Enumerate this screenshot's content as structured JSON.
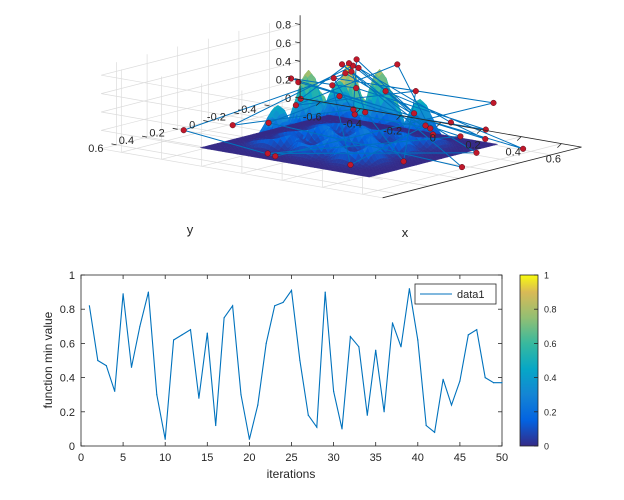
{
  "chart_data": [
    {
      "type": "surface3d",
      "xlabel": "x",
      "ylabel": "y",
      "zlabel": "",
      "x_ticks": [
        "-0.6",
        "-0.4",
        "-0.2",
        "0",
        "0.2",
        "0.4",
        "0.6"
      ],
      "y_ticks": [
        "-0.4",
        "-0.2",
        "0",
        "0.2",
        "0.4",
        "0.6"
      ],
      "z_ticks": [
        "0",
        "0.2",
        "0.4",
        "0.6",
        "0.8"
      ],
      "xlim": [
        -0.7,
        0.7
      ],
      "ylim": [
        -0.6,
        0.7
      ],
      "zlim": [
        0,
        0.9
      ],
      "grid": true,
      "surface": {
        "colormap": "parula",
        "peaks": [
          {
            "x": 0.0,
            "y": 0.0,
            "height": 0.9,
            "width": 0.05
          },
          {
            "x": 0.0,
            "y": -0.2,
            "height": 0.75,
            "width": 0.05
          },
          {
            "x": -0.2,
            "y": 0.0,
            "height": 0.75,
            "width": 0.05
          },
          {
            "x": 0.2,
            "y": 0.2,
            "height": 0.75,
            "width": 0.05
          },
          {
            "x": 0.0,
            "y": 0.2,
            "height": 0.7,
            "width": 0.05
          },
          {
            "x": 0.2,
            "y": 0.0,
            "height": 0.7,
            "width": 0.05
          },
          {
            "x": -0.2,
            "y": -0.2,
            "height": 0.55,
            "width": 0.05
          },
          {
            "x": 0.2,
            "y": -0.2,
            "height": 0.5,
            "width": 0.05
          },
          {
            "x": -0.2,
            "y": 0.2,
            "height": 0.45,
            "width": 0.05
          }
        ]
      },
      "path_color": "#0072BD",
      "marker_color": "#C0182A",
      "path_points": [
        [
          0.05,
          0.05,
          0.85
        ],
        [
          -0.48,
          0.45,
          0.18
        ],
        [
          -0.1,
          0.35,
          0.0
        ],
        [
          0.3,
          -0.55,
          0.35
        ],
        [
          0.0,
          0.1,
          0.78
        ],
        [
          -0.2,
          -0.3,
          0.14
        ],
        [
          0.1,
          -0.4,
          0.06
        ],
        [
          0.0,
          -0.05,
          0.92
        ],
        [
          0.25,
          0.3,
          0.62
        ],
        [
          -0.35,
          0.3,
          0.22
        ],
        [
          0.02,
          0.0,
          0.88
        ],
        [
          0.4,
          0.1,
          0.55
        ],
        [
          -0.12,
          -0.22,
          0.71
        ],
        [
          0.05,
          -0.6,
          0.02
        ],
        [
          0.45,
          -0.3,
          0.12
        ],
        [
          -0.25,
          0.05,
          0.66
        ],
        [
          0.15,
          0.15,
          0.75
        ],
        [
          0.3,
          -0.5,
          0.08
        ],
        [
          -0.05,
          0.25,
          0.6
        ],
        [
          0.0,
          0.0,
          0.9
        ],
        [
          -0.3,
          -0.5,
          0.04
        ],
        [
          0.5,
          0.3,
          0.15
        ],
        [
          0.18,
          -0.2,
          0.58
        ],
        [
          -0.15,
          0.15,
          0.45
        ],
        [
          0.05,
          -0.25,
          0.8
        ],
        [
          0.38,
          -0.05,
          0.25
        ],
        [
          -0.05,
          -0.02,
          0.86
        ],
        [
          0.6,
          0.05,
          0.02
        ],
        [
          -0.4,
          0.0,
          0.1
        ],
        [
          0.12,
          0.22,
          0.68
        ],
        [
          0.25,
          -0.4,
          0.03
        ],
        [
          -0.1,
          0.4,
          0.05
        ],
        [
          0.52,
          -0.15,
          0.06
        ],
        [
          0.02,
          0.05,
          0.82
        ],
        [
          -0.22,
          -0.18,
          0.5
        ],
        [
          0.35,
          0.45,
          0.12
        ],
        [
          0.0,
          -0.5,
          0.01
        ],
        [
          0.22,
          0.05,
          0.7
        ],
        [
          0.6,
          -0.35,
          0.05
        ],
        [
          -0.1,
          0.2,
          0.74
        ]
      ]
    },
    {
      "type": "line",
      "xlabel": "iterations",
      "ylabel": "function min value",
      "xlim": [
        0,
        50
      ],
      "ylim": [
        0,
        1
      ],
      "x_ticks": [
        "0",
        "5",
        "10",
        "15",
        "20",
        "25",
        "30",
        "35",
        "40",
        "45",
        "50"
      ],
      "y_ticks": [
        "0",
        "0.2",
        "0.4",
        "0.6",
        "0.8",
        "1"
      ],
      "grid": false,
      "legend_position": "top-right",
      "series": [
        {
          "name": "data1",
          "color": "#0072BD",
          "x": [
            1,
            2,
            3,
            4,
            5,
            6,
            7,
            8,
            9,
            10,
            11,
            12,
            13,
            14,
            15,
            16,
            17,
            18,
            19,
            20,
            21,
            22,
            23,
            24,
            25,
            26,
            27,
            28,
            29,
            30,
            31,
            32,
            33,
            34,
            35,
            36,
            37,
            38,
            39,
            40,
            41,
            42,
            43,
            44,
            45,
            46,
            47,
            48,
            49,
            50
          ],
          "values": [
            0.82,
            0.5,
            0.47,
            0.32,
            0.89,
            0.46,
            0.7,
            0.9,
            0.3,
            0.04,
            0.62,
            0.65,
            0.68,
            0.28,
            0.66,
            0.12,
            0.75,
            0.82,
            0.3,
            0.04,
            0.24,
            0.6,
            0.82,
            0.84,
            0.91,
            0.5,
            0.18,
            0.11,
            0.9,
            0.32,
            0.1,
            0.64,
            0.58,
            0.18,
            0.56,
            0.2,
            0.72,
            0.58,
            0.92,
            0.62,
            0.12,
            0.08,
            0.39,
            0.24,
            0.38,
            0.65,
            0.68,
            0.4,
            0.37,
            0.37
          ]
        }
      ]
    },
    {
      "type": "colorbar",
      "colormap": "parula",
      "ticks": [
        "0",
        "0.2",
        "0.4",
        "0.6",
        "0.8",
        "1"
      ],
      "range": [
        0,
        1
      ]
    }
  ]
}
